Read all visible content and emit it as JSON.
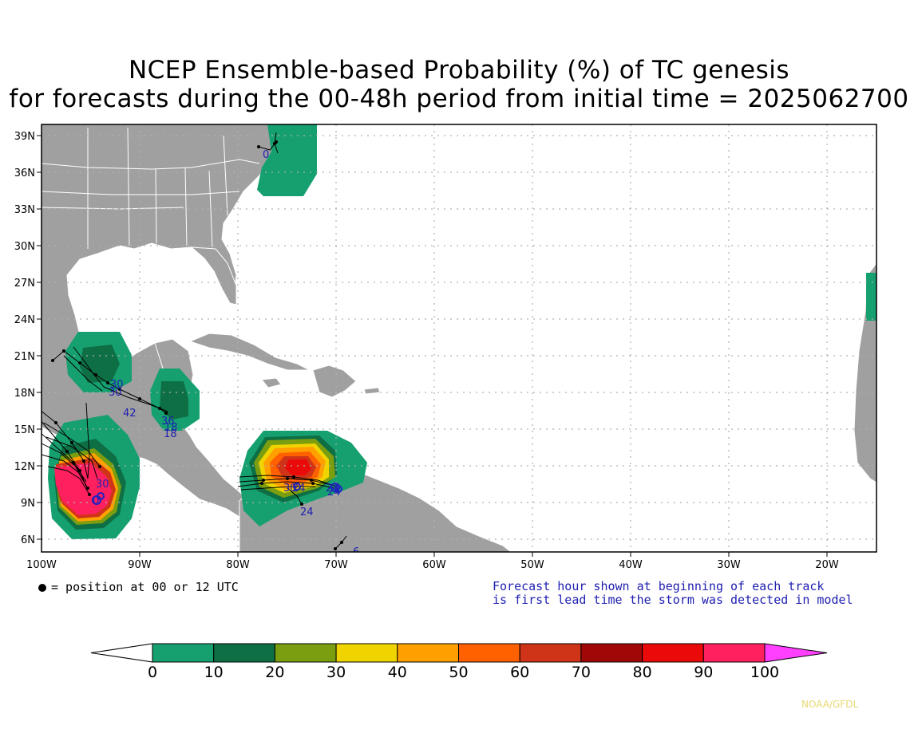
{
  "title": {
    "line1": "NCEP Ensemble-based Probability (%) of TC genesis",
    "line2": "for forecasts during the 00-48h period from initial time = 2025062700"
  },
  "axes": {
    "lat_labels": [
      "39N",
      "36N",
      "33N",
      "30N",
      "27N",
      "24N",
      "21N",
      "18N",
      "15N",
      "12N",
      "9N",
      "6N"
    ],
    "lon_labels": [
      "100W",
      "90W",
      "80W",
      "70W",
      "60W",
      "50W",
      "40W",
      "30W",
      "20W"
    ]
  },
  "legend": {
    "marker_text": "= position at 00 or 12 UTC",
    "note_line1": "Forecast hour shown at beginning of each track",
    "note_line2": "is first lead time the storm was detected in model"
  },
  "colorbar": {
    "ticks": [
      "0",
      "10",
      "20",
      "30",
      "40",
      "50",
      "60",
      "70",
      "80",
      "90",
      "100"
    ],
    "colors": [
      "#ffffff",
      "#16a070",
      "#0e6e44",
      "#7a9e10",
      "#f0d400",
      "#ffa000",
      "#ff6000",
      "#d03418",
      "#a00808",
      "#ea0a0a",
      "#ff2060",
      "#ff40ff"
    ]
  },
  "colors": {
    "land": "#a0a0a0",
    "ocean": "#ffffff",
    "track_label": "#2020b0"
  },
  "track_labels": [
    "0",
    "30",
    "30",
    "42",
    "36",
    "18",
    "18",
    "30",
    "0",
    "30",
    "24",
    "24",
    "24",
    "24",
    "6"
  ],
  "credit": "NOAA/GFDL"
}
